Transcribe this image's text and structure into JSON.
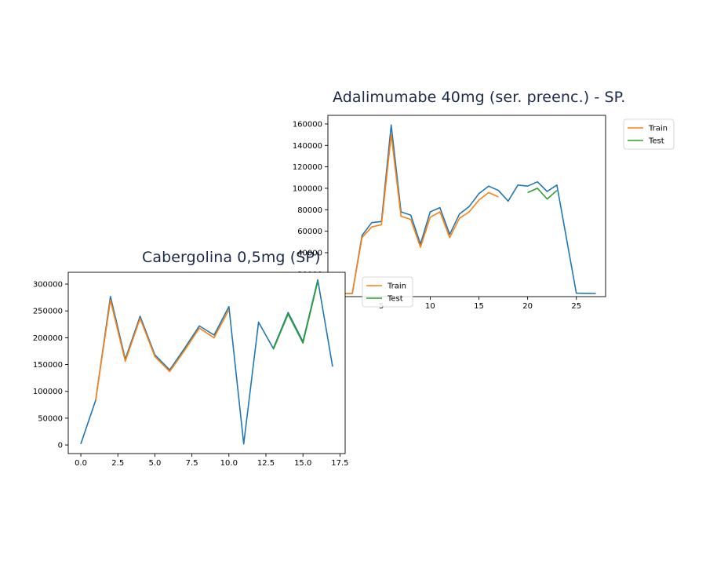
{
  "colors": {
    "train": "#ff7f0e",
    "test": "#2ca02c",
    "actual": "#1f77b4",
    "axis": "#000000",
    "title": "#1d2a4a"
  },
  "chart_data": [
    {
      "type": "line",
      "title": "Adalimumabe 40mg (ser. preenc.) - SP.",
      "xlabel": "",
      "ylabel": "",
      "xlim": [
        -0.5,
        28
      ],
      "ylim": [
        -1000,
        168000
      ],
      "x_ticks": [
        "5",
        "10",
        "15",
        "20",
        "25"
      ],
      "y_ticks": [
        "20000",
        "40000",
        "60000",
        "80000",
        "100000",
        "120000",
        "140000",
        "160000"
      ],
      "grid": false,
      "legend": {
        "entries": [
          "Train",
          "Test"
        ],
        "placement": "outside-top-right"
      },
      "series": [
        {
          "name": "",
          "x": [
            0,
            1,
            2,
            3,
            4,
            5,
            6,
            7,
            8,
            9,
            10,
            11,
            12,
            13,
            14,
            15,
            16,
            17,
            18,
            19,
            20,
            21,
            22,
            23,
            25,
            26,
            27
          ],
          "values": [
            2000,
            1800,
            1900,
            56000,
            68000,
            69000,
            159000,
            78000,
            75000,
            48000,
            78000,
            82000,
            57000,
            76000,
            83000,
            95000,
            102000,
            98000,
            88000,
            103000,
            102000,
            106000,
            97000,
            103000,
            2200,
            2100,
            1900
          ]
        },
        {
          "name": "Train",
          "x": [
            0,
            1,
            2,
            3,
            4,
            5,
            6,
            7,
            8,
            9,
            10,
            11,
            12,
            13,
            14,
            15,
            16,
            17
          ],
          "values": [
            2000,
            1800,
            1900,
            54000,
            64000,
            66000,
            150000,
            74000,
            71000,
            45000,
            73000,
            78000,
            54000,
            72000,
            78000,
            89000,
            96000,
            92000
          ]
        },
        {
          "name": "Test",
          "x": [
            20,
            21,
            22,
            23
          ],
          "values": [
            96000,
            100000,
            90000,
            98000
          ]
        }
      ]
    },
    {
      "type": "line",
      "title": "Cabergolina 0,5mg (SP)",
      "xlabel": "",
      "ylabel": "",
      "xlim": [
        -0.85,
        17.85
      ],
      "ylim": [
        -16000,
        322000
      ],
      "x_ticks": [
        "0.0",
        "2.5",
        "5.0",
        "7.5",
        "10.0",
        "12.5",
        "15.0",
        "17.5"
      ],
      "y_ticks": [
        "0",
        "50000",
        "100000",
        "150000",
        "200000",
        "250000",
        "300000"
      ],
      "grid": false,
      "legend": {
        "entries": [
          "Train",
          "Test"
        ],
        "placement": "upper-right"
      },
      "series": [
        {
          "name": "",
          "x": [
            0,
            1,
            2,
            3,
            4,
            5,
            6,
            7,
            8,
            9,
            10,
            11,
            12,
            13,
            14,
            15,
            16,
            17
          ],
          "values": [
            2000,
            83000,
            277000,
            160000,
            240000,
            168000,
            140000,
            180000,
            222000,
            205000,
            258000,
            2000,
            229000,
            180000,
            247000,
            193000,
            308000,
            146000
          ]
        },
        {
          "name": "Train",
          "x": [
            1,
            2,
            3,
            4,
            5,
            6,
            7,
            8,
            9,
            10
          ],
          "values": [
            83000,
            270000,
            156000,
            236000,
            165000,
            137000,
            176000,
            218000,
            200000,
            252000
          ]
        },
        {
          "name": "Test",
          "x": [
            13,
            14,
            15,
            16
          ],
          "values": [
            178000,
            244000,
            190000,
            305000
          ]
        }
      ]
    }
  ]
}
